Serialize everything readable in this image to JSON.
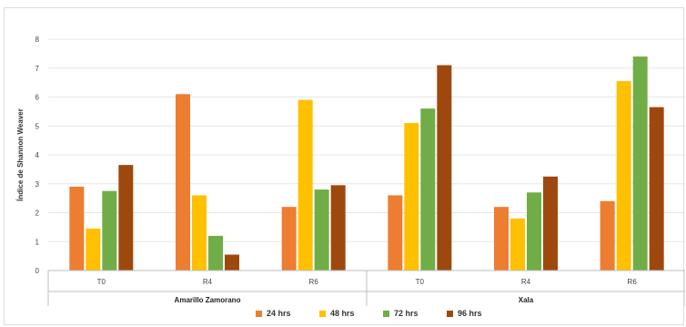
{
  "chart_data": {
    "type": "bar",
    "title": "",
    "xlabel": "",
    "ylabel": "Índice de Shannon Weaver",
    "ylim": [
      0,
      8
    ],
    "yticks": [
      0,
      1,
      2,
      3,
      4,
      5,
      6,
      7,
      8
    ],
    "grid": true,
    "legend_position": "bottom",
    "groups": [
      {
        "label": "Amarillo Zamorano",
        "categories": [
          "T0",
          "R4",
          "R6"
        ]
      },
      {
        "label": "Xala",
        "categories": [
          "T0",
          "R4",
          "R6"
        ]
      }
    ],
    "categories": [
      "T0",
      "R4",
      "R6",
      "T0",
      "R4",
      "R6"
    ],
    "series": [
      {
        "name": "24 hrs",
        "color": "#ED7D31",
        "values": [
          2.9,
          6.1,
          2.2,
          2.6,
          2.2,
          2.4
        ]
      },
      {
        "name": "48 hrs",
        "color": "#FFC000",
        "values": [
          1.45,
          2.6,
          5.9,
          5.1,
          1.8,
          6.55
        ]
      },
      {
        "name": "72 hrs",
        "color": "#70AD47",
        "values": [
          2.75,
          1.2,
          2.8,
          5.6,
          2.7,
          7.4
        ]
      },
      {
        "name": "96 hrs",
        "color": "#9E480E",
        "values": [
          3.65,
          0.55,
          2.95,
          7.1,
          3.25,
          5.65
        ]
      }
    ]
  }
}
